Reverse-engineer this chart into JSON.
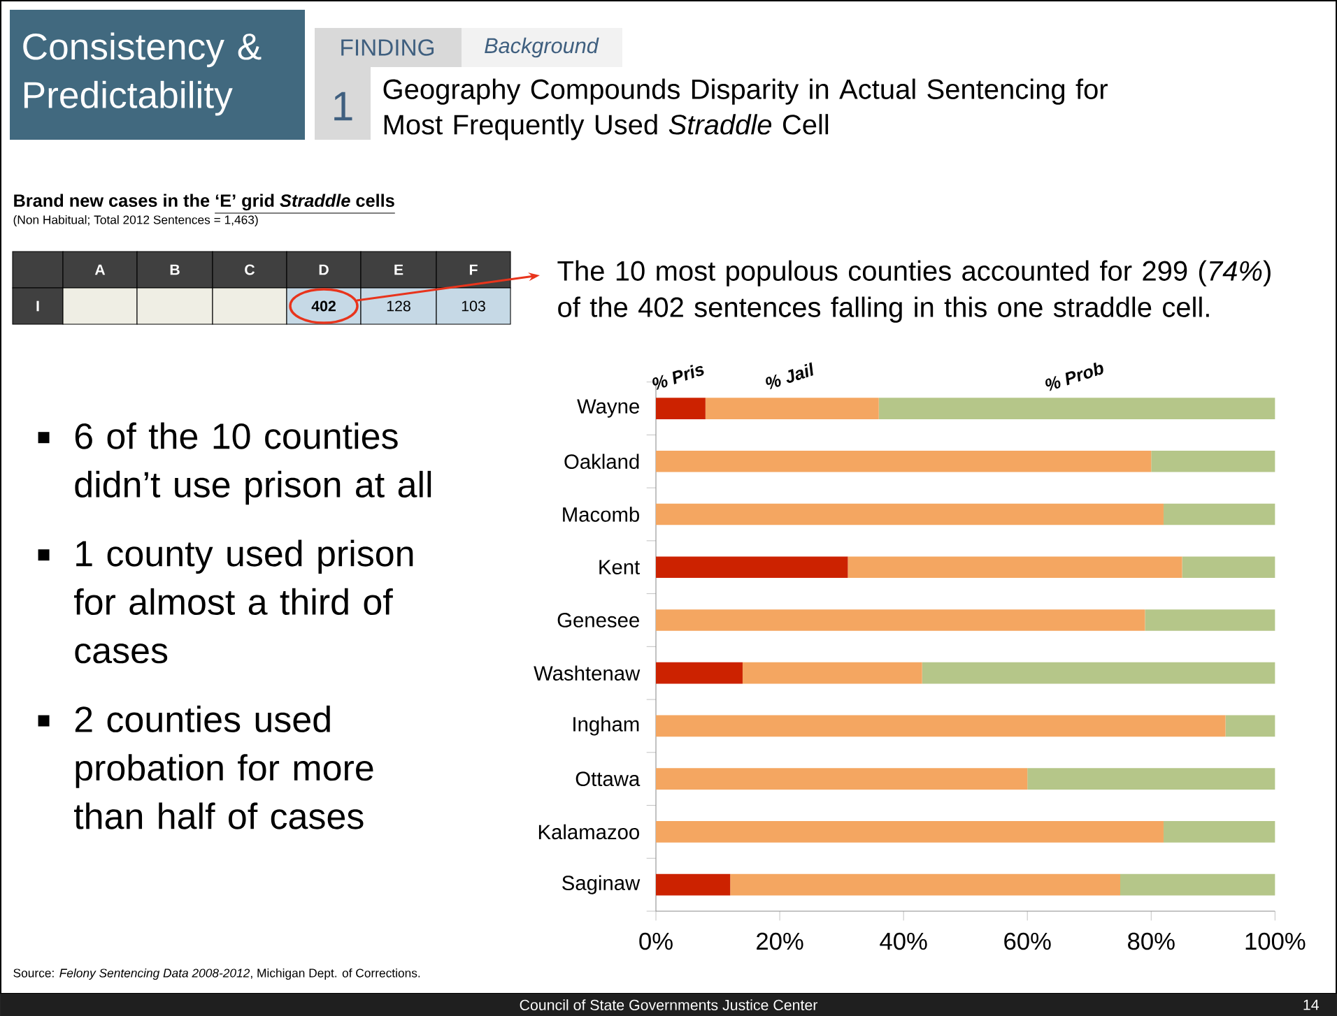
{
  "chart_data": {
    "type": "bar",
    "orientation": "horizontal",
    "stacked": true,
    "title": "Geography Compounds Disparity in Actual Sentencing for Most Frequently Used *Straddle* Cell",
    "categories": [
      "Wayne",
      "Oakland",
      "Macomb",
      "Kent",
      "Genesee",
      "Washtenaw",
      "Ingham",
      "Ottawa",
      "Kalamazoo",
      "Saginaw"
    ],
    "series": [
      {
        "name": "% Pris",
        "color": "#cc2200",
        "values": [
          8,
          0,
          0,
          31,
          0,
          14,
          0,
          0,
          0,
          12
        ]
      },
      {
        "name": "% Jail",
        "color": "#f4a661",
        "values": [
          28,
          80,
          82,
          54,
          79,
          29,
          92,
          60,
          82,
          63
        ]
      },
      {
        "name": "% Prob",
        "color": "#b5c689",
        "values": [
          64,
          20,
          18,
          15,
          21,
          57,
          8,
          40,
          18,
          25
        ]
      }
    ],
    "xlim": [
      0,
      100
    ],
    "xticks": [
      {
        "value": 0,
        "label": "0%"
      },
      {
        "value": 20,
        "label": "20%"
      },
      {
        "value": 40,
        "label": "40%"
      },
      {
        "value": 60,
        "label": "60%"
      },
      {
        "value": 80,
        "label": "80%"
      },
      {
        "value": 100,
        "label": "100%"
      }
    ],
    "annotations": [
      "Consistency & Predictability",
      "FINDING",
      "Background",
      "1",
      "Brand new cases in the ",
      "‘E’ grid *Straddle* cells",
      "(Non Habitual; Total 2012 Sentences = 1,463)",
      "A",
      "B",
      "C",
      "D",
      "E",
      "F",
      "I",
      "402",
      "128",
      "103",
      "The 10 most populous counties accounted for 299 (*74%*) of the 402 sentences falling in this one straddle cell.",
      "6 of the 10 counties didn’t use prison at all",
      "1 county used prison for almost a third of cases",
      "2 counties used probation for more than half of cases",
      "Source: *Felony Sentencing Data 2008-2012*, Michigan Dept. of Corrections.",
      "Council of State Governments Justice Center",
      "14"
    ]
  }
}
